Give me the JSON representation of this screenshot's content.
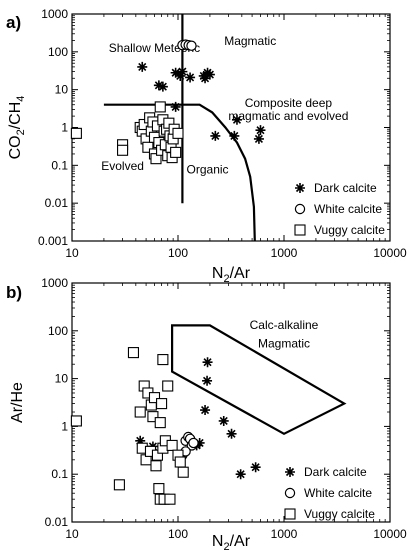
{
  "chart_data": [
    {
      "panel_label": "a)",
      "type": "scatter",
      "xscale": "log",
      "yscale": "log",
      "xlim": [
        10,
        10000
      ],
      "ylim": [
        0.001,
        1000
      ],
      "xlabel_main": "N",
      "xlabel_sub": "2",
      "xlabel_rest": "/Ar",
      "ylabel_main": "CO",
      "ylabel_sub1": "2",
      "ylabel_mid": "/CH",
      "ylabel_sub2": "4",
      "xticks": [
        10,
        100,
        1000,
        10000
      ],
      "xtick_labels": [
        "10",
        "100",
        "1000",
        "10000"
      ],
      "yticks": [
        0.001,
        0.01,
        0.1,
        1,
        10,
        100,
        1000
      ],
      "ytick_labels": [
        "0.001",
        "0.01",
        "0.1",
        "1",
        "10",
        "100",
        "1000"
      ],
      "region_labels": [
        {
          "text": "Shallow Meteoric",
          "x": 60,
          "y": 100
        },
        {
          "text": "Magmatic",
          "x": 480,
          "y": 150
        },
        {
          "text": "Composite deep",
          "x": 1100,
          "y": 3.5
        },
        {
          "text": "magmatic and evolved",
          "x": 1100,
          "y": 1.6
        },
        {
          "text": "Evolved",
          "x": 30,
          "y": 0.075
        },
        {
          "text": "Organic",
          "x": 190,
          "y": 0.06
        }
      ],
      "boundary_lines": [
        {
          "name": "vertical",
          "points": [
            [
              110,
              0.01
            ],
            [
              110,
              1000
            ]
          ]
        },
        {
          "name": "horizontal",
          "points": [
            [
              20,
              4
            ],
            [
              110,
              4
            ],
            [
              160,
              4
            ],
            [
              210,
              2.5
            ],
            [
              280,
              1
            ],
            [
              360,
              0.4
            ],
            [
              430,
              0.15
            ],
            [
              480,
              0.05
            ],
            [
              520,
              0.008
            ],
            [
              530,
              0.001
            ]
          ]
        }
      ],
      "legend": {
        "placement": "bottom-right",
        "entries": [
          "Dark calcite",
          "White calcite",
          "Vuggy calcite"
        ]
      },
      "series": [
        {
          "name": "Dark calcite",
          "marker": "asterisk",
          "points": [
            [
              46,
              40
            ],
            [
              66,
              13
            ],
            [
              72,
              12
            ],
            [
              95,
              28
            ],
            [
              105,
              23
            ],
            [
              110,
              30
            ],
            [
              130,
              21
            ],
            [
              175,
              23
            ],
            [
              180,
              20
            ],
            [
              190,
              28
            ],
            [
              200,
              25
            ],
            [
              95,
              3.5
            ],
            [
              225,
              0.6
            ],
            [
              340,
              0.6
            ],
            [
              360,
              1.6
            ],
            [
              580,
              0.5
            ],
            [
              600,
              0.85
            ]
          ]
        },
        {
          "name": "White calcite",
          "marker": "circle",
          "points": [
            [
              110,
              150
            ],
            [
              118,
              155
            ],
            [
              126,
              150
            ],
            [
              134,
              145
            ]
          ]
        },
        {
          "name": "Vuggy calcite",
          "marker": "square",
          "points": [
            [
              11,
              0.7
            ],
            [
              30,
              0.35
            ],
            [
              30,
              0.25
            ],
            [
              44,
              1.0
            ],
            [
              46,
              0.8
            ],
            [
              48,
              1.2
            ],
            [
              50,
              0.5
            ],
            [
              52,
              0.3
            ],
            [
              54,
              1.8
            ],
            [
              56,
              0.8
            ],
            [
              58,
              1.4
            ],
            [
              60,
              0.55
            ],
            [
              60,
              0.2
            ],
            [
              62,
              0.15
            ],
            [
              64,
              1.1
            ],
            [
              66,
              0.4
            ],
            [
              68,
              3.5
            ],
            [
              70,
              0.25
            ],
            [
              72,
              1.6
            ],
            [
              74,
              0.8
            ],
            [
              76,
              0.35
            ],
            [
              78,
              0.9
            ],
            [
              80,
              0.18
            ],
            [
              82,
              1.3
            ],
            [
              84,
              0.6
            ],
            [
              86,
              0.3
            ],
            [
              88,
              0.16
            ],
            [
              90,
              0.5
            ],
            [
              92,
              0.9
            ],
            [
              95,
              0.22
            ],
            [
              100,
              0.7
            ]
          ]
        }
      ]
    },
    {
      "panel_label": "b)",
      "type": "scatter",
      "xscale": "log",
      "yscale": "log",
      "xlim": [
        10,
        10000
      ],
      "ylim": [
        0.01,
        1000
      ],
      "xlabel_main": "N",
      "xlabel_sub": "2",
      "xlabel_rest": "/Ar",
      "ylabel_main": "Ar/He",
      "xticks": [
        10,
        100,
        1000,
        10000
      ],
      "xtick_labels": [
        "10",
        "100",
        "1000",
        "10000"
      ],
      "yticks": [
        0.01,
        0.1,
        1,
        10,
        100,
        1000
      ],
      "ytick_labels": [
        "0.01",
        "0.1",
        "1",
        "10",
        "100",
        "1000"
      ],
      "region_labels": [
        {
          "text": "Calc-alkaline",
          "x": 1000,
          "y": 110
        },
        {
          "text": "Magmatic",
          "x": 1000,
          "y": 45
        }
      ],
      "boundary_lines": [
        {
          "name": "calc-alkaline-field",
          "closed": true,
          "points": [
            [
              88,
              130
            ],
            [
              200,
              130
            ],
            [
              3700,
              3
            ],
            [
              1000,
              0.7
            ],
            [
              88,
              14
            ]
          ]
        }
      ],
      "legend": {
        "placement": "bottom-right",
        "entries": [
          "Dark calcite",
          "White calcite",
          "Vuggy calcite"
        ]
      },
      "series": [
        {
          "name": "Dark calcite",
          "marker": "asterisk",
          "points": [
            [
              44,
              0.5
            ],
            [
              58,
              0.38
            ],
            [
              190,
              22
            ],
            [
              188,
              9
            ],
            [
              180,
              2.2
            ],
            [
              150,
              0.4
            ],
            [
              160,
              0.45
            ],
            [
              270,
              1.3
            ],
            [
              320,
              0.7
            ],
            [
              390,
              0.1
            ],
            [
              540,
              0.14
            ]
          ]
        },
        {
          "name": "White calcite",
          "marker": "circle",
          "points": [
            [
              118,
              0.5
            ],
            [
              125,
              0.6
            ],
            [
              130,
              0.55
            ],
            [
              135,
              0.4
            ],
            [
              140,
              0.45
            ],
            [
              110,
              0.25
            ],
            [
              118,
              0.3
            ]
          ]
        },
        {
          "name": "Vuggy calcite",
          "marker": "square",
          "points": [
            [
              11,
              1.3
            ],
            [
              28,
              0.06
            ],
            [
              38,
              35
            ],
            [
              44,
              2.0
            ],
            [
              46,
              0.35
            ],
            [
              48,
              7
            ],
            [
              50,
              0.2
            ],
            [
              52,
              5
            ],
            [
              55,
              0.3
            ],
            [
              56,
              2.8
            ],
            [
              58,
              1.6
            ],
            [
              60,
              4
            ],
            [
              62,
              0.15
            ],
            [
              64,
              0.25
            ],
            [
              66,
              0.05
            ],
            [
              68,
              1.2
            ],
            [
              68,
              0.03
            ],
            [
              70,
              3
            ],
            [
              72,
              0.35
            ],
            [
              72,
              25
            ],
            [
              74,
              0.03
            ],
            [
              76,
              0.5
            ],
            [
              80,
              7
            ],
            [
              84,
              0.03
            ],
            [
              88,
              0.4
            ],
            [
              100,
              0.25
            ],
            [
              105,
              0.18
            ],
            [
              112,
              0.11
            ]
          ]
        }
      ]
    }
  ]
}
